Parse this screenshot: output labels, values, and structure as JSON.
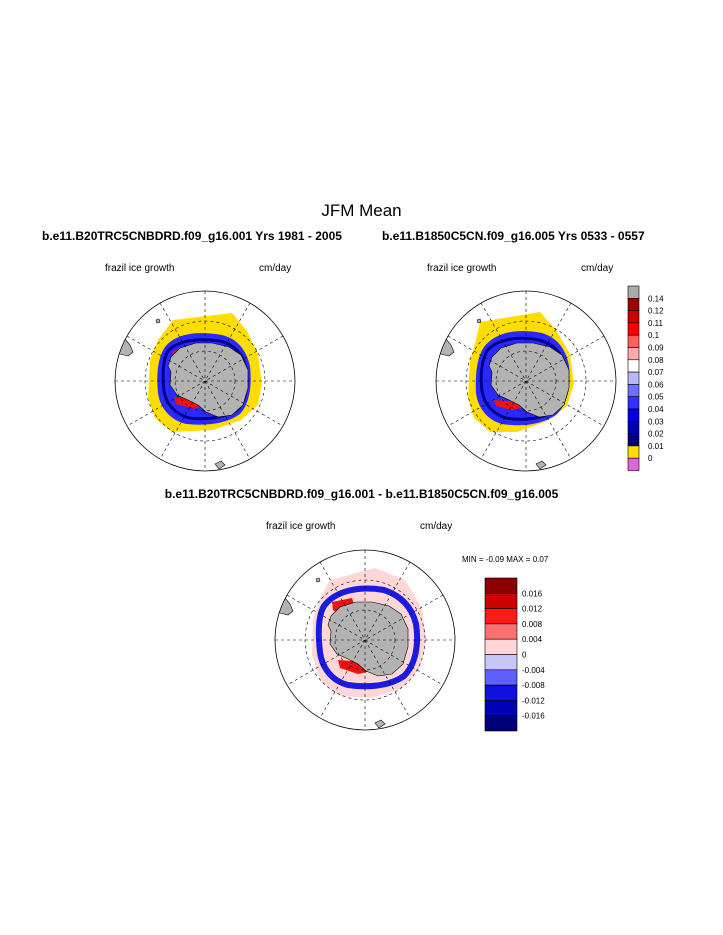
{
  "figure": {
    "main_title": "JFM Mean",
    "panel_left_title": "b.e11.B20TRC5CNBDRD.f09_g16.001  Yrs 1981 - 2005",
    "panel_right_title": "b.e11.B1850C5CN.f09_g16.005  Yrs 0533 - 0557",
    "diff_title": "b.e11.B20TRC5CNBDRD.f09_g16.001 - b.e11.B1850C5CN.f09_g16.005",
    "variable": "frazil ice growth",
    "units": "cm/day",
    "stats": "MIN =  -0.09 MAX =   0.07"
  },
  "chart_data": [
    {
      "type": "heatmap",
      "name": "colorbar-mean",
      "title": "frazil ice growth",
      "units": "cm/day",
      "levels": [
        "0.14",
        "0.12",
        "0.11",
        "0.1",
        "0.09",
        "0.08",
        "0.07",
        "0.06",
        "0.05",
        "0.04",
        "0.03",
        "0.02",
        "0.01",
        "0"
      ],
      "colors": [
        "#aaaaaa",
        "#a00000",
        "#cc0000",
        "#ff0000",
        "#ff6060",
        "#ffaaaa",
        "#ffffff",
        "#b8b8f8",
        "#7070ff",
        "#3030ff",
        "#0000e0",
        "#0000b0",
        "#000080",
        "#ffdd00",
        "#dd66dd"
      ]
    },
    {
      "type": "heatmap",
      "name": "colorbar-difference",
      "title": "frazil ice growth",
      "units": "cm/day",
      "min": -0.09,
      "max": 0.07,
      "levels": [
        "0.016",
        "0.012",
        "0.008",
        "0.004",
        "0",
        "-0.004",
        "-0.008",
        "-0.012",
        "-0.016"
      ],
      "colors": [
        "#8b0000",
        "#cc0000",
        "#ff1a1a",
        "#ff7070",
        "#ffd7d7",
        "#c8c8f8",
        "#6060ff",
        "#1010e0",
        "#0000b4",
        "#00007a"
      ]
    }
  ]
}
